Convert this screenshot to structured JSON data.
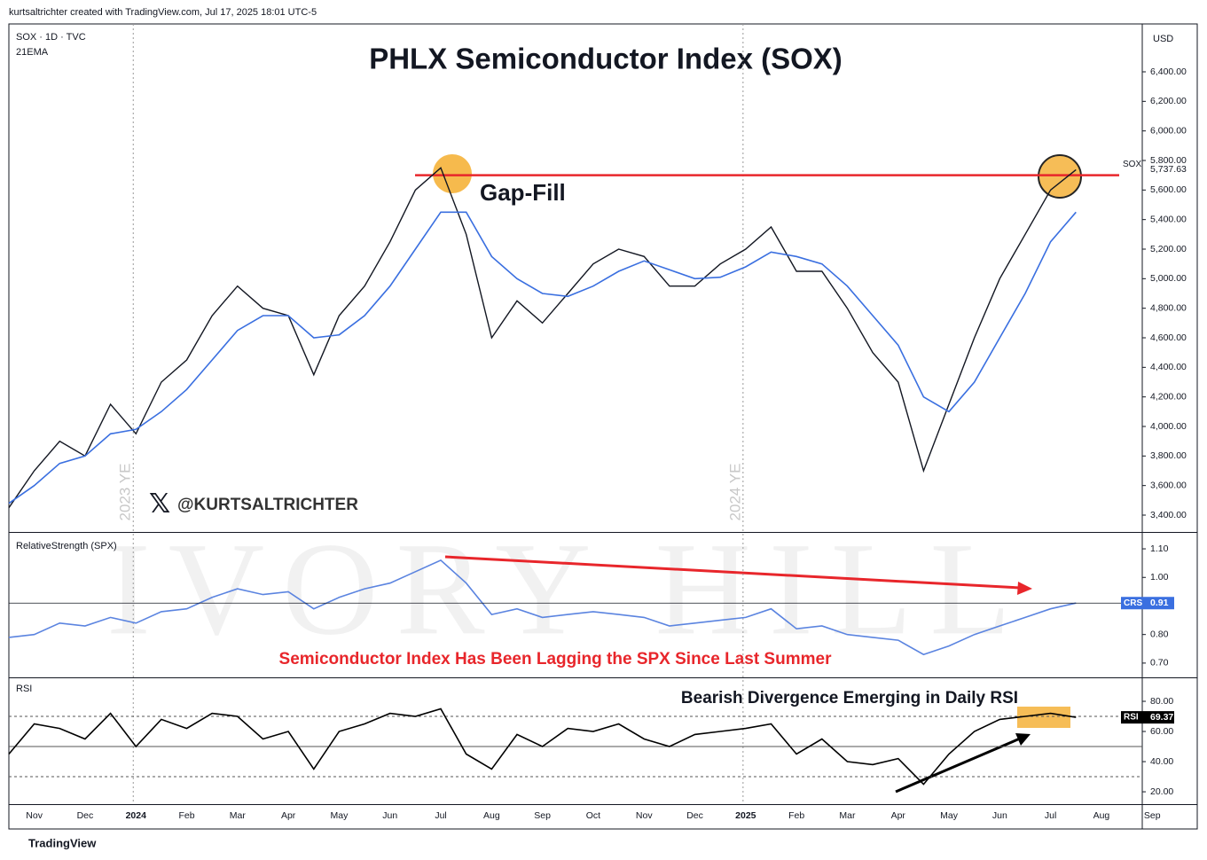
{
  "header": {
    "credit": "kurtsaltrichter created with TradingView.com, Jul 17, 2025 18:01 UTC-5",
    "currency": "USD",
    "footer": "TradingView"
  },
  "chart_data": [
    {
      "type": "line",
      "title": "PHLX Semiconductor Index (SOX)",
      "symbol": "SOX · 1D · TVC",
      "watermark": "@KURTSALTRICHTER",
      "background_mark": "IVORY HILL",
      "gap_fill_label": "Gap-Fill",
      "gap_fill_level": 5700,
      "year_ends": [
        "2023 YE",
        "2024 YE"
      ],
      "series": [
        {
          "name": "SOX",
          "color": "#131722",
          "values": [
            3450,
            3700,
            3900,
            3800,
            4150,
            3950,
            4300,
            4450,
            4750,
            4950,
            4800,
            4750,
            4350,
            4750,
            4950,
            5250,
            5600,
            5750,
            5300,
            4600,
            4850,
            4700,
            4900,
            5100,
            5200,
            5150,
            4950,
            4950,
            5100,
            5200,
            5350,
            5050,
            5050,
            4800,
            4500,
            4300,
            3700,
            4150,
            4600,
            5000,
            5300,
            5600,
            5737.63,
            null,
            null,
            null
          ]
        },
        {
          "name": "21EMA",
          "color": "#3a6fe0",
          "values": [
            3480,
            3600,
            3750,
            3800,
            3950,
            3980,
            4100,
            4250,
            4450,
            4650,
            4750,
            4750,
            4600,
            4620,
            4750,
            4950,
            5200,
            5450,
            5450,
            5150,
            5000,
            4900,
            4880,
            4950,
            5050,
            5120,
            5060,
            5000,
            5010,
            5080,
            5180,
            5150,
            5100,
            4950,
            4750,
            4550,
            4200,
            4100,
            4300,
            4600,
            4900,
            5250,
            5450,
            null,
            null,
            null
          ]
        }
      ],
      "ylim": [
        3286,
        6724
      ],
      "yticks": [
        {
          "value": 3400,
          "label": "3,400.00"
        },
        {
          "value": 3600,
          "label": "3,600.00"
        },
        {
          "value": 3800,
          "label": "3,800.00"
        },
        {
          "value": 4000,
          "label": "4,000.00"
        },
        {
          "value": 4200,
          "label": "4,200.00"
        },
        {
          "value": 4400,
          "label": "4,400.00"
        },
        {
          "value": 4600,
          "label": "4,600.00"
        },
        {
          "value": 4800,
          "label": "4,800.00"
        },
        {
          "value": 5000,
          "label": "5,000.00"
        },
        {
          "value": 5200,
          "label": "5,200.00"
        },
        {
          "value": 5400,
          "label": "5,400.00"
        },
        {
          "value": 5600,
          "label": "5,600.00"
        },
        {
          "value": 5800,
          "label": "5,800.00"
        },
        {
          "value": 6000,
          "label": "6,000.00"
        },
        {
          "value": 6200,
          "label": "6,200.00"
        },
        {
          "value": 6400,
          "label": "6,400.00"
        }
      ],
      "tag": {
        "value": 5737.63,
        "label": "5,737.63"
      }
    },
    {
      "type": "line",
      "title": "RelativeStrength (SPX)",
      "annotation": "Semiconductor Index Has Been Lagging the SPX Since Last Summer",
      "series": [
        {
          "name": "CRS",
          "color": "#5b84e0",
          "values": [
            0.79,
            0.8,
            0.84,
            0.83,
            0.86,
            0.84,
            0.88,
            0.89,
            0.93,
            0.96,
            0.94,
            0.95,
            0.89,
            0.93,
            0.96,
            0.98,
            1.02,
            1.06,
            0.98,
            0.87,
            0.89,
            0.86,
            0.87,
            0.88,
            0.87,
            0.86,
            0.83,
            0.84,
            0.85,
            0.86,
            0.89,
            0.82,
            0.83,
            0.8,
            0.79,
            0.78,
            0.73,
            0.76,
            0.8,
            0.83,
            0.86,
            0.89,
            0.91,
            null,
            null,
            null
          ]
        }
      ],
      "ylim": [
        0.65,
        1.156
      ],
      "yticks": [
        {
          "value": 0.7,
          "label": "0.70"
        },
        {
          "value": 0.8,
          "label": "0.80"
        },
        {
          "value": 1.0,
          "label": "1.00"
        },
        {
          "value": 1.1,
          "label": "1.10"
        }
      ],
      "tag": {
        "value": 0.91,
        "label": "0.91"
      }
    },
    {
      "type": "line",
      "title": "RSI",
      "annotation": "Bearish Divergence Emerging in Daily RSI",
      "categories": [
        null,
        "Nov",
        null,
        "Dec",
        null,
        "2024",
        null,
        "Feb",
        null,
        "Mar",
        null,
        "Apr",
        null,
        "May",
        null,
        "Jun",
        null,
        "Jul",
        null,
        "Aug",
        null,
        "Sep",
        null,
        "Oct",
        null,
        "Nov",
        null,
        "Dec",
        null,
        "2025",
        null,
        "Feb",
        null,
        "Mar",
        null,
        "Apr",
        null,
        "May",
        null,
        "Jun",
        null,
        "Jul",
        null,
        "Aug",
        null,
        "Sep"
      ],
      "series": [
        {
          "name": "RSI",
          "color": "#000000",
          "values": [
            45,
            65,
            62,
            55,
            72,
            50,
            68,
            62,
            72,
            70,
            55,
            60,
            35,
            60,
            65,
            72,
            70,
            75,
            45,
            35,
            58,
            50,
            62,
            60,
            65,
            55,
            50,
            58,
            60,
            62,
            65,
            45,
            55,
            40,
            38,
            42,
            25,
            45,
            60,
            68,
            70,
            72,
            69.37,
            null,
            null,
            null
          ]
        }
      ],
      "levels": [
        70,
        50,
        30
      ],
      "ylim": [
        11.8,
        95.3
      ],
      "yticks": [
        {
          "value": 20,
          "label": "20.00"
        },
        {
          "value": 40,
          "label": "40.00"
        },
        {
          "value": 60,
          "label": "60.00"
        },
        {
          "value": 80,
          "label": "80.00"
        }
      ],
      "tag": {
        "value": 69.37,
        "label": "69.37"
      }
    }
  ]
}
